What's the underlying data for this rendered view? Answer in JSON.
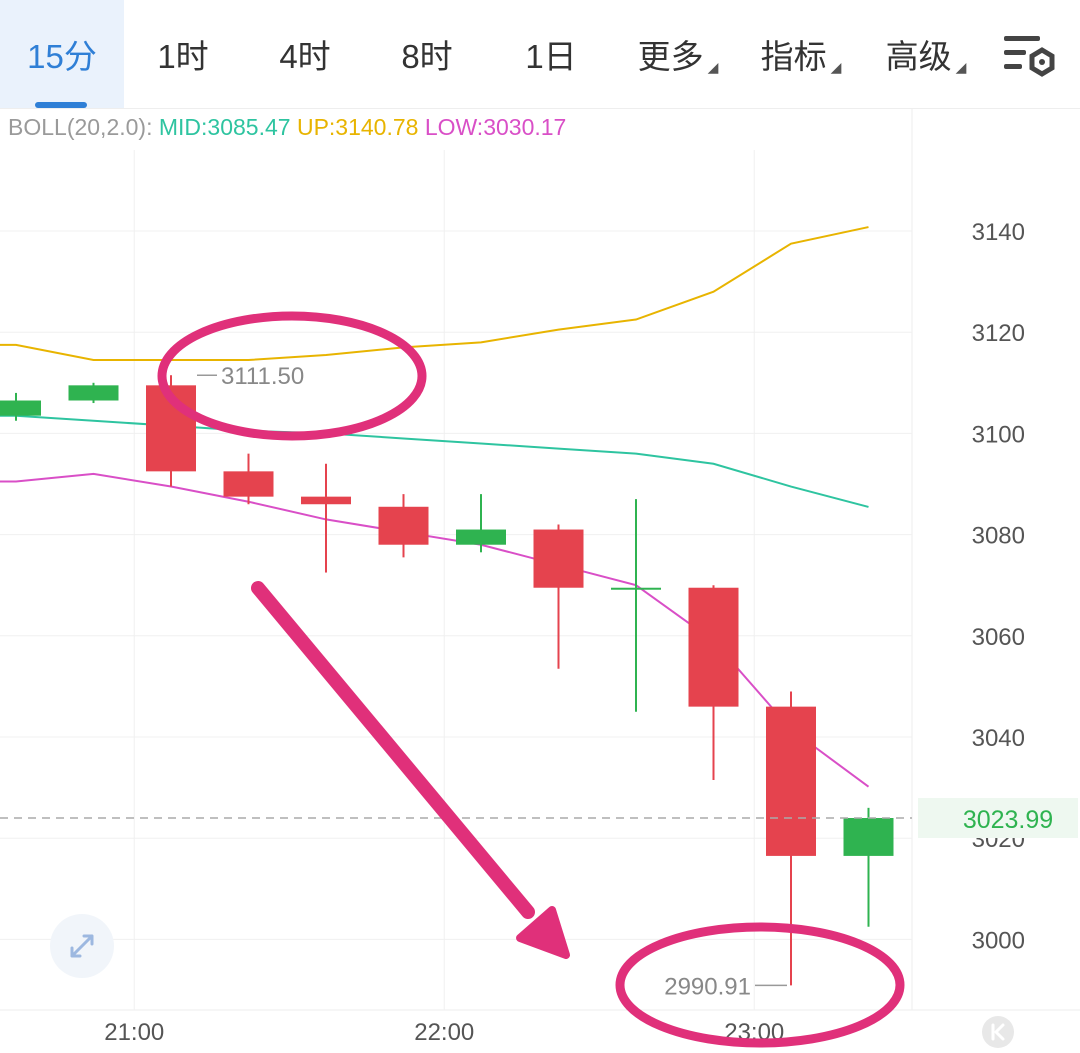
{
  "tabs": [
    {
      "label": "15分",
      "active": true
    },
    {
      "label": "1时"
    },
    {
      "label": "4时"
    },
    {
      "label": "8时"
    },
    {
      "label": "1日"
    },
    {
      "label": "更多",
      "caret": true
    },
    {
      "label": "指标",
      "caret": true
    },
    {
      "label": "高级",
      "caret": true
    }
  ],
  "settings_icon": "chart-settings-icon",
  "indicator": {
    "name": "BOLL(20,2.0):",
    "mid_label": "MID:3085.47",
    "up_label": "UP:3140.78",
    "low_label": "LOW:3030.17",
    "colors": {
      "name": "#9a9a9a",
      "mid": "#2ec4a0",
      "up": "#e8b400",
      "low": "#d94fc7"
    }
  },
  "expand_icon": "expand-icon",
  "scroll_icon": "scroll-to-latest-icon",
  "chart_data": {
    "type": "candlestick",
    "y_ticks": [
      3140,
      3120,
      3100,
      3080,
      3060,
      3040,
      3020,
      3000
    ],
    "ylim": [
      2987,
      3160
    ],
    "x_ticks": [
      {
        "label": "21:00",
        "index": 1.5
      },
      {
        "label": "22:00",
        "index": 5.5
      },
      {
        "label": "23:00",
        "index": 9.5
      }
    ],
    "candles": [
      {
        "open": 3103.5,
        "high": 3108,
        "low": 3102.5,
        "close": 3106.5
      },
      {
        "open": 3106.5,
        "high": 3110,
        "low": 3106,
        "close": 3109.5
      },
      {
        "open": 3109.5,
        "high": 3111.5,
        "low": 3089.5,
        "close": 3092.5
      },
      {
        "open": 3092.5,
        "high": 3096,
        "low": 3086,
        "close": 3087.5
      },
      {
        "open": 3087.5,
        "high": 3094,
        "low": 3072.5,
        "close": 3086
      },
      {
        "open": 3085.5,
        "high": 3088,
        "low": 3075.5,
        "close": 3078
      },
      {
        "open": 3078,
        "high": 3088,
        "low": 3076.5,
        "close": 3081
      },
      {
        "open": 3081,
        "high": 3082,
        "low": 3053.5,
        "close": 3069.5
      },
      {
        "open": 3069.5,
        "high": 3087,
        "low": 3045,
        "close": 3069.5
      },
      {
        "open": 3069.5,
        "high": 3070,
        "low": 3031.5,
        "close": 3046
      },
      {
        "open": 3046,
        "high": 3049,
        "low": 2990.91,
        "close": 3016.5
      },
      {
        "open": 3016.5,
        "high": 3026,
        "low": 3002.5,
        "close": 3023.99
      }
    ],
    "boll_up": [
      3117.5,
      3114.5,
      3114.5,
      3114.5,
      3115.5,
      3117,
      3118,
      3120.5,
      3122.5,
      3128,
      3137.5,
      3140.78
    ],
    "boll_mid": [
      3103.5,
      3102.5,
      3101.5,
      3100.5,
      3100,
      3099,
      3098,
      3097,
      3096,
      3094,
      3089.5,
      3085.47
    ],
    "boll_low": [
      3090.5,
      3092,
      3089.5,
      3086.5,
      3083,
      3080.5,
      3078,
      3074,
      3070,
      3059,
      3041.5,
      3030.17
    ],
    "last_price": "3023.99",
    "max_label": "3111.50",
    "min_label": "2990.91",
    "colors": {
      "up": "#2fb350",
      "down": "#e5434e",
      "grid": "#f0f0f0",
      "axis_text": "#555555",
      "last_price": "#2fb350",
      "annotation": "#e0307a"
    }
  }
}
